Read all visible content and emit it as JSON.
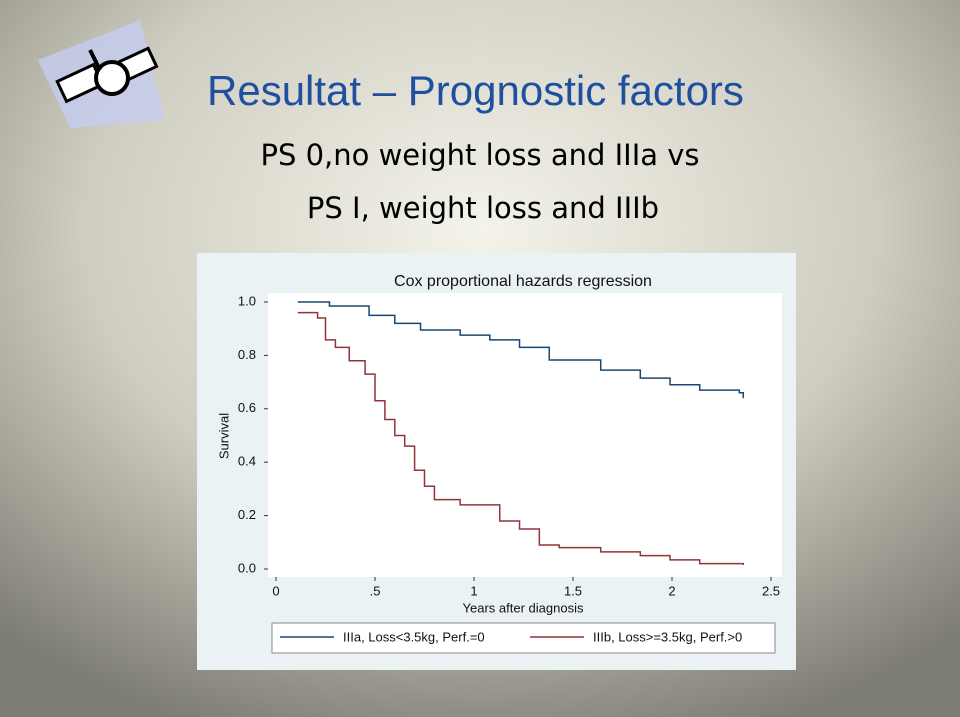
{
  "slide": {
    "title": "Resultat – Prognostic factors",
    "subtitle": [
      "PS 0,no weight loss and IIIa vs",
      "PS I, weight loss and IIIb"
    ]
  },
  "chart_data": {
    "type": "step",
    "title": "Cox proportional hazards regression",
    "x_label": "Years after diagnosis",
    "y_label": "Survival",
    "xlim": [
      0,
      2.5
    ],
    "ylim": [
      0,
      1
    ],
    "xticks": [
      0,
      {
        "value": 0.5,
        "label": ".5"
      },
      1,
      1.5,
      2,
      2.5
    ],
    "yticks": [
      {
        "value": 0,
        "label": "0.0"
      },
      {
        "value": 0.2,
        "label": "0.2"
      },
      {
        "value": 0.4,
        "label": "0.4"
      },
      {
        "value": 0.6,
        "label": "0.6"
      },
      {
        "value": 0.8,
        "label": "0.8"
      },
      {
        "value": 1,
        "label": "1.0"
      }
    ],
    "grid": false,
    "series": [
      {
        "name": "IIIa, Loss<3.5kg, Perf.=0",
        "color": "#1a476f",
        "x": [
          0.11,
          0.27,
          0.47,
          0.6,
          0.73,
          0.93,
          1.08,
          1.23,
          1.38,
          1.64,
          1.84,
          1.99,
          2.14,
          2.34,
          2.36
        ],
        "values": [
          1,
          0.985,
          0.95,
          0.92,
          0.895,
          0.876,
          0.858,
          0.83,
          0.783,
          0.745,
          0.715,
          0.69,
          0.67,
          0.66,
          0.64
        ]
      },
      {
        "name": "IIIb, Loss>=3.5kg, Perf.>0",
        "color": "#90353b",
        "x": [
          0.11,
          0.21,
          0.25,
          0.3,
          0.37,
          0.45,
          0.5,
          0.55,
          0.6,
          0.65,
          0.7,
          0.75,
          0.8,
          0.93,
          1.13,
          1.23,
          1.33,
          1.43,
          1.64,
          1.84,
          1.99,
          2.14,
          2.36
        ],
        "values": [
          0.96,
          0.94,
          0.858,
          0.83,
          0.78,
          0.73,
          0.63,
          0.56,
          0.5,
          0.46,
          0.37,
          0.31,
          0.26,
          0.24,
          0.18,
          0.15,
          0.09,
          0.08,
          0.064,
          0.05,
          0.034,
          0.02,
          0.015
        ]
      }
    ]
  }
}
